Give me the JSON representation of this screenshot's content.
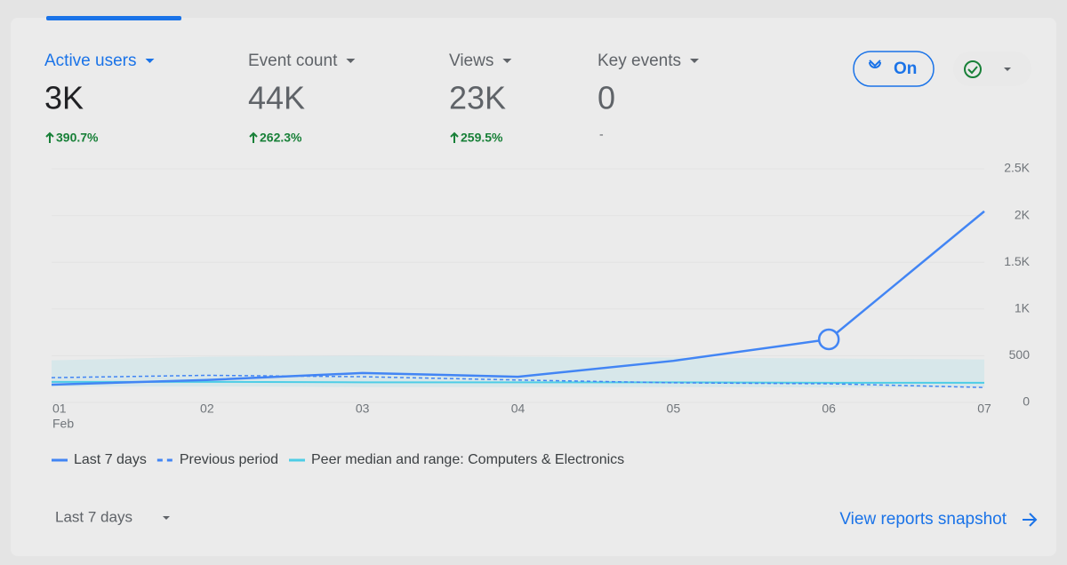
{
  "metrics": [
    {
      "label": "Active users",
      "value": "3K",
      "change": "390.7%",
      "active": true
    },
    {
      "label": "Event count",
      "value": "44K",
      "change": "262.3%",
      "active": false
    },
    {
      "label": "Views",
      "value": "23K",
      "change": "259.5%",
      "active": false
    },
    {
      "label": "Key events",
      "value": "0",
      "change": "-",
      "active": false
    }
  ],
  "toggle": {
    "label": "On"
  },
  "chart": {
    "type": "line",
    "categories": [
      "01",
      "02",
      "03",
      "04",
      "05",
      "06",
      "07"
    ],
    "x_sublabel": "Feb",
    "series": [
      {
        "name": "Last 7 days",
        "color": "#4285f4",
        "style": "solid",
        "values": [
          190,
          240,
          315,
          275,
          445,
          675,
          2045
        ]
      },
      {
        "name": "Previous period",
        "color": "#4285f4",
        "style": "dashed",
        "values": [
          265,
          290,
          275,
          240,
          210,
          200,
          160
        ]
      },
      {
        "name": "Peer median and range: Computers & Electronics",
        "color": "#4ecde6",
        "style": "band",
        "values": [
          220,
          220,
          215,
          215,
          215,
          210,
          210
        ],
        "lower": [
          170,
          170,
          165,
          165,
          165,
          160,
          160
        ],
        "upper": [
          450,
          490,
          500,
          490,
          480,
          470,
          460
        ]
      }
    ],
    "highlight_index": 5,
    "ylim": [
      0,
      2500
    ],
    "yticks": [
      0,
      500,
      {
        "value": 1000,
        "label": "1K"
      },
      {
        "value": 1500,
        "label": "1.5K"
      },
      {
        "value": 2000,
        "label": "2K"
      },
      {
        "value": 2500,
        "label": "2.5K"
      }
    ]
  },
  "footer": {
    "range": "Last 7 days",
    "link": "View reports snapshot"
  }
}
